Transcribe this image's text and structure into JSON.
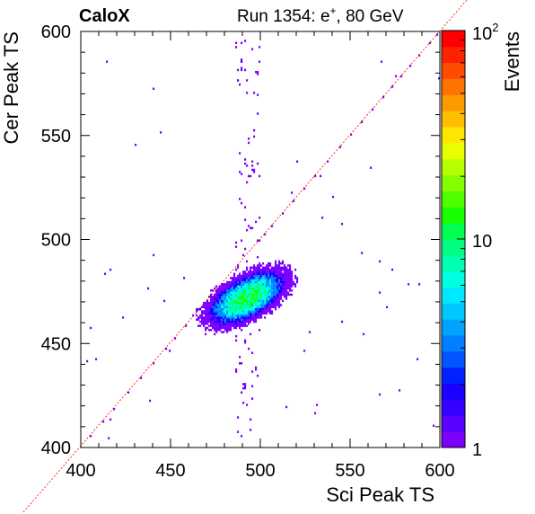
{
  "header": {
    "brand": "CaloX",
    "run_label": "Run 1354: e",
    "run_particle_sup": "+",
    "run_energy": ", 80 GeV"
  },
  "chart_data": {
    "type": "heatmap",
    "title": "",
    "xlabel": "Sci Peak TS",
    "ylabel": "Cer Peak TS",
    "xlim": [
      400,
      600
    ],
    "ylim": [
      400,
      600
    ],
    "x_ticks": [
      "400",
      "450",
      "500",
      "550",
      "600"
    ],
    "y_ticks": [
      "400",
      "450",
      "500",
      "550",
      "600"
    ],
    "colorbar": {
      "label": "Events",
      "scale": "log",
      "range": [
        1,
        100
      ],
      "tick_labels": [
        "1",
        "10",
        "10"
      ],
      "top_exponent": "2"
    },
    "reference_line": {
      "style": "dashed",
      "color": "#ff0000",
      "relation": "y = x"
    },
    "palette": [
      "#7b00ff",
      "#5a00ff",
      "#3500ff",
      "#1a00ff",
      "#0022ff",
      "#0055ff",
      "#007fff",
      "#00a4ff",
      "#00c8ff",
      "#00e8ff",
      "#00ffe0",
      "#00ffb0",
      "#00ff80",
      "#00ff50",
      "#19ff00",
      "#50ff00",
      "#85ff00",
      "#b8ff00",
      "#e8ff00",
      "#ffe600",
      "#ffbf00",
      "#ff9900",
      "#ff7300",
      "#ff4d00",
      "#ff2200",
      "#ff0000"
    ],
    "core_cluster": {
      "x_center": 492,
      "y_center": 472,
      "x_spread": 10,
      "y_spread": 5,
      "slope": 0.35,
      "peak_events": 12
    },
    "diagonal_points": [
      [
        405,
        405
      ],
      [
        412,
        412
      ],
      [
        418,
        418
      ],
      [
        426,
        426
      ],
      [
        433,
        433
      ],
      [
        440,
        440
      ],
      [
        447,
        447
      ],
      [
        452,
        452
      ],
      [
        458,
        458
      ],
      [
        462,
        463
      ],
      [
        466,
        466
      ],
      [
        470,
        470
      ],
      [
        502,
        502
      ],
      [
        506,
        506
      ],
      [
        512,
        512
      ],
      [
        518,
        518
      ],
      [
        524,
        524
      ],
      [
        530,
        530
      ],
      [
        537,
        537
      ],
      [
        544,
        544
      ],
      [
        550,
        550
      ],
      [
        556,
        556
      ],
      [
        562,
        562
      ],
      [
        568,
        568
      ],
      [
        573,
        573
      ],
      [
        578,
        578
      ],
      [
        583,
        583
      ],
      [
        588,
        588
      ],
      [
        594,
        594
      ],
      [
        598,
        598
      ]
    ],
    "vertical_band": {
      "x_min": 486,
      "x_max": 500,
      "y_ranges": [
        [
          485,
          598
        ],
        [
          404,
          458
        ]
      ]
    },
    "scattered_points": [
      [
        414,
        585
      ],
      [
        440,
        572
      ],
      [
        444,
        551
      ],
      [
        430,
        545
      ],
      [
        416,
        485
      ],
      [
        413,
        483
      ],
      [
        440,
        492
      ],
      [
        405,
        457
      ],
      [
        408,
        442
      ],
      [
        403,
        441
      ],
      [
        423,
        462
      ],
      [
        437,
        476
      ],
      [
        446,
        470
      ],
      [
        449,
        446
      ],
      [
        438,
        422
      ],
      [
        416,
        413
      ],
      [
        415,
        404
      ],
      [
        457,
        481
      ],
      [
        520,
        537
      ],
      [
        540,
        520
      ],
      [
        534,
        510
      ],
      [
        556,
        493
      ],
      [
        566,
        489
      ],
      [
        573,
        485
      ],
      [
        582,
        478
      ],
      [
        588,
        478
      ],
      [
        566,
        474
      ],
      [
        570,
        467
      ],
      [
        557,
        454
      ],
      [
        545,
        460
      ],
      [
        527,
        455
      ],
      [
        524,
        446
      ],
      [
        531,
        420
      ],
      [
        530,
        416
      ],
      [
        514,
        419
      ],
      [
        566,
        425
      ],
      [
        577,
        427
      ],
      [
        587,
        442
      ],
      [
        596,
        410
      ],
      [
        567,
        585
      ],
      [
        575,
        578
      ],
      [
        599,
        577
      ],
      [
        561,
        534
      ],
      [
        533,
        530
      ],
      [
        545,
        507
      ],
      [
        517,
        522
      ]
    ]
  }
}
